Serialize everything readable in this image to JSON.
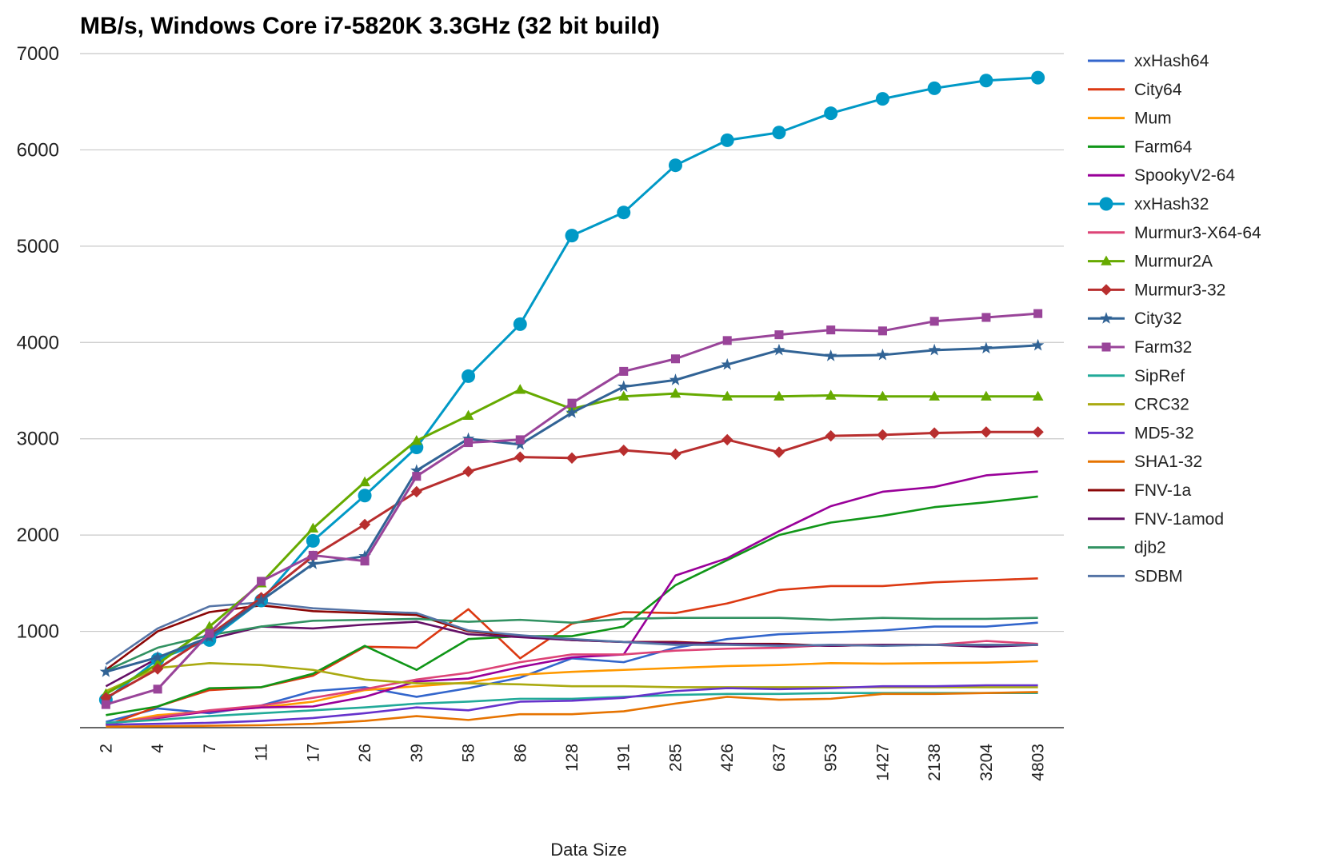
{
  "chart_data": {
    "type": "line",
    "title": "MB/s, Windows Core i7-5820K 3.3GHz (32 bit build)",
    "xlabel": "Data Size",
    "ylabel": "",
    "ylim": [
      0,
      7000
    ],
    "yticks": [
      1000,
      2000,
      3000,
      4000,
      5000,
      6000,
      7000
    ],
    "grid": true,
    "legend_position": "right",
    "categories": [
      "2",
      "4",
      "7",
      "11",
      "17",
      "26",
      "39",
      "58",
      "86",
      "128",
      "191",
      "285",
      "426",
      "637",
      "953",
      "1427",
      "2138",
      "3204",
      "4803"
    ],
    "series": [
      {
        "name": "xxHash64",
        "color": "#3366cc",
        "marker": "none",
        "values": [
          60,
          200,
          150,
          230,
          380,
          420,
          320,
          410,
          520,
          720,
          680,
          830,
          920,
          970,
          990,
          1010,
          1050,
          1050,
          1090
        ]
      },
      {
        "name": "City64",
        "color": "#dc3912",
        "marker": "none",
        "values": [
          20,
          220,
          390,
          420,
          540,
          840,
          830,
          1230,
          720,
          1080,
          1200,
          1190,
          1290,
          1430,
          1470,
          1470,
          1510,
          1530,
          1550
        ]
      },
      {
        "name": "Mum",
        "color": "#ff9900",
        "marker": "none",
        "values": [
          35,
          130,
          170,
          210,
          270,
          390,
          430,
          470,
          550,
          580,
          600,
          620,
          640,
          650,
          670,
          665,
          670,
          675,
          690
        ]
      },
      {
        "name": "Farm64",
        "color": "#109618",
        "marker": "none",
        "values": [
          130,
          220,
          410,
          420,
          560,
          850,
          600,
          920,
          950,
          950,
          1050,
          1480,
          1740,
          2000,
          2130,
          2200,
          2290,
          2340,
          2400
        ]
      },
      {
        "name": "SpookyV2-64",
        "color": "#990099",
        "marker": "none",
        "values": [
          40,
          100,
          170,
          210,
          220,
          320,
          480,
          510,
          630,
          730,
          760,
          1580,
          1760,
          2040,
          2300,
          2450,
          2500,
          2620,
          2660
        ]
      },
      {
        "name": "xxHash32",
        "color": "#0099c6",
        "marker": "circle",
        "values": [
          290,
          710,
          910,
          1320,
          1940,
          2410,
          2910,
          3650,
          4190,
          5110,
          5350,
          5840,
          6100,
          6180,
          6380,
          6530,
          6640,
          6720,
          6750
        ]
      },
      {
        "name": "Murmur3-X64-64",
        "color": "#dd4477",
        "marker": "none",
        "values": [
          40,
          110,
          180,
          230,
          310,
          400,
          500,
          570,
          680,
          760,
          760,
          800,
          820,
          830,
          860,
          860,
          860,
          900,
          870
        ]
      },
      {
        "name": "Murmur2A",
        "color": "#66aa00",
        "marker": "triangle",
        "values": [
          350,
          660,
          1050,
          1500,
          2070,
          2550,
          2980,
          3240,
          3510,
          3310,
          3440,
          3470,
          3440,
          3440,
          3450,
          3440,
          3440,
          3440,
          3440
        ]
      },
      {
        "name": "Murmur3-32",
        "color": "#b82e2e",
        "marker": "diamond",
        "values": [
          310,
          610,
          960,
          1350,
          1780,
          2110,
          2450,
          2660,
          2810,
          2800,
          2880,
          2840,
          2990,
          2860,
          3030,
          3040,
          3060,
          3070,
          3070
        ]
      },
      {
        "name": "City32",
        "color": "#316395",
        "marker": "star",
        "values": [
          580,
          730,
          940,
          1320,
          1700,
          1780,
          2670,
          3000,
          2940,
          3270,
          3540,
          3610,
          3770,
          3920,
          3860,
          3870,
          3920,
          3940,
          3970
        ]
      },
      {
        "name": "Farm32",
        "color": "#994499",
        "marker": "square",
        "values": [
          240,
          400,
          980,
          1520,
          1790,
          1730,
          2610,
          2960,
          2990,
          3370,
          3700,
          3830,
          4020,
          4080,
          4130,
          4120,
          4220,
          4260,
          4300
        ]
      },
      {
        "name": "SipRef",
        "color": "#22aa99",
        "marker": "none",
        "values": [
          50,
          80,
          120,
          150,
          180,
          210,
          250,
          270,
          300,
          300,
          320,
          340,
          350,
          350,
          360,
          360,
          360,
          360,
          360
        ]
      },
      {
        "name": "CRC32",
        "color": "#aaaa11",
        "marker": "none",
        "values": [
          380,
          620,
          670,
          650,
          600,
          500,
          460,
          460,
          450,
          430,
          430,
          420,
          420,
          420,
          420,
          420,
          420,
          420,
          420
        ]
      },
      {
        "name": "MD5-32",
        "color": "#6633cc",
        "marker": "none",
        "values": [
          30,
          40,
          50,
          70,
          100,
          150,
          210,
          180,
          270,
          280,
          310,
          380,
          410,
          400,
          410,
          430,
          430,
          440,
          440
        ]
      },
      {
        "name": "SHA1-32",
        "color": "#e67300",
        "marker": "none",
        "values": [
          10,
          15,
          20,
          25,
          40,
          70,
          120,
          80,
          140,
          140,
          170,
          250,
          320,
          290,
          300,
          350,
          350,
          360,
          370
        ]
      },
      {
        "name": "FNV-1a",
        "color": "#8b0707",
        "marker": "none",
        "values": [
          600,
          1000,
          1200,
          1270,
          1210,
          1190,
          1170,
          1000,
          950,
          910,
          890,
          890,
          870,
          870,
          850,
          860,
          860,
          860,
          860
        ]
      },
      {
        "name": "FNV-1amod",
        "color": "#651067",
        "marker": "none",
        "values": [
          430,
          720,
          920,
          1050,
          1030,
          1070,
          1100,
          970,
          940,
          910,
          890,
          880,
          870,
          860,
          850,
          860,
          860,
          840,
          860
        ]
      },
      {
        "name": "djb2",
        "color": "#329262",
        "marker": "none",
        "values": [
          590,
          830,
          960,
          1050,
          1110,
          1120,
          1130,
          1100,
          1120,
          1090,
          1130,
          1140,
          1140,
          1140,
          1120,
          1140,
          1130,
          1130,
          1140
        ]
      },
      {
        "name": "SDBM",
        "color": "#5574a6",
        "marker": "none",
        "values": [
          660,
          1030,
          1260,
          1300,
          1240,
          1210,
          1190,
          1010,
          960,
          920,
          890,
          860,
          860,
          850,
          860,
          850,
          860,
          860,
          860
        ]
      }
    ]
  }
}
